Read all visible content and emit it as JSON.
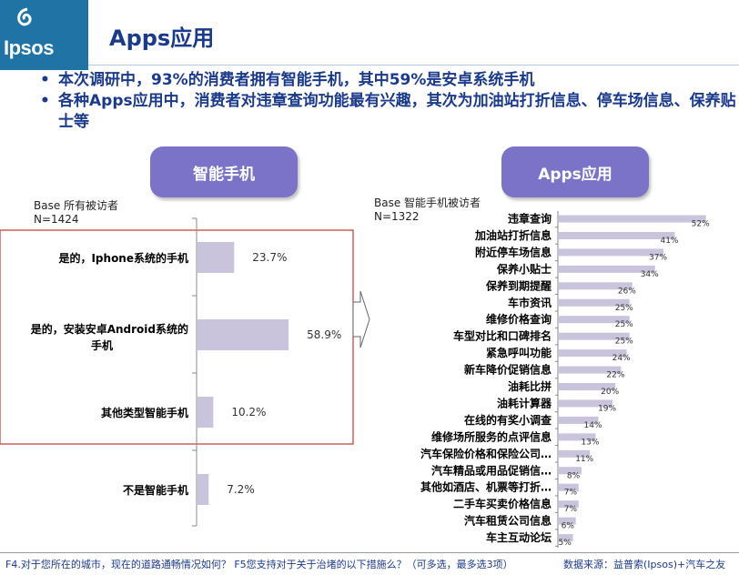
{
  "header": {
    "logo_text": "Ipsos",
    "title": "Apps应用"
  },
  "bullets": [
    "本次调研中，93%的消费者拥有智能手机，其中59%是安卓系统手机",
    "各种Apps应用中，消费者对违章查询功能最有兴趣，其次为加油站打折信息、停车场信息、保养贴士等"
  ],
  "left_panel": {
    "pill": "智能手机",
    "base_line1": "Base 所有被访者",
    "base_line2": "N=1424"
  },
  "right_panel": {
    "pill": "Apps应用",
    "base_line1": "Base 智能手机被访者",
    "base_line2": "N=1322"
  },
  "footer": {
    "question": "F4.对于您所在的城市，现在的道路通畅情况如何？ F5您支持对于关于治堵的以下措施么？（可多选，最多选3项）",
    "source": "数据来源：益普索(Ipsos)+汽车之友"
  },
  "colors": {
    "bar": "#c9c3dc",
    "accent": "#7a73c8",
    "title": "#1a3a8c",
    "highlight_box": "#c0392b"
  },
  "chart_data": [
    {
      "type": "bar",
      "orientation": "horizontal",
      "categories": [
        "是的，Iphone系统的手机",
        "是的，安装安卓Android系统的手机",
        "其他类型智能手机",
        "不是智能手机"
      ],
      "values": [
        23.7,
        58.9,
        10.2,
        7.2
      ],
      "value_labels": [
        "23.7%",
        "58.9%",
        "10.2%",
        "7.2%"
      ],
      "xlim": [
        0,
        60
      ],
      "grid": false
    },
    {
      "type": "bar",
      "orientation": "horizontal",
      "categories": [
        "违章查询",
        "加油站打折信息",
        "附近停车场信息",
        "保养小贴士",
        "保养到期提醒",
        "车市资讯",
        "维修价格查询",
        "车型对比和口碑排名",
        "紧急呼叫功能",
        "新车降价促销信息",
        "油耗比拼",
        "油耗计算器",
        "在线的有奖小调查",
        "维修场所服务的点评信息",
        "汽车保险价格和保险公司…",
        "汽车精品或用品促销信…",
        "其他如酒店、机票等打折…",
        "二手车买卖价格信息",
        "汽车租赁公司信息",
        "车主互动论坛"
      ],
      "values": [
        52,
        41,
        37,
        34,
        26,
        25,
        25,
        25,
        24,
        22,
        20,
        19,
        14,
        13,
        11,
        8,
        7,
        7,
        6,
        5
      ],
      "value_labels": [
        "52%",
        "41%",
        "37%",
        "34%",
        "26%",
        "25%",
        "25%",
        "25%",
        "24%",
        "22%",
        "20%",
        "19%",
        "14%",
        "13%",
        "11%",
        "8%",
        "7%",
        "7%",
        "6%",
        "5%"
      ],
      "xlim": [
        0,
        55
      ],
      "grid": false
    }
  ]
}
